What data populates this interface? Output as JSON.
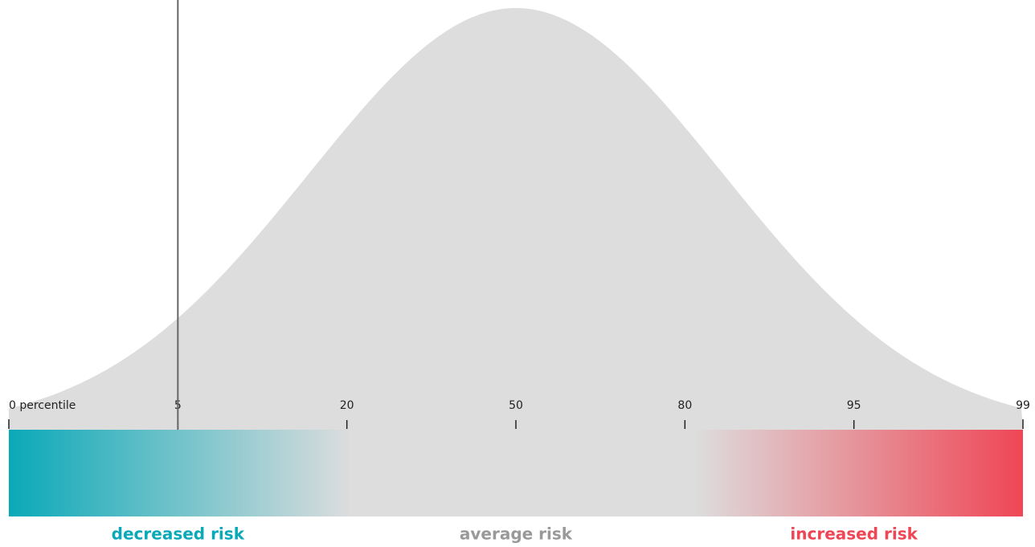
{
  "chart_data": {
    "type": "percentile",
    "ticks": [
      {
        "value": 0,
        "label": "0 percentile"
      },
      5,
      20,
      50,
      80,
      95,
      99
    ],
    "marker": 5,
    "curve_color": "#dddddd",
    "marker_color": "#666666",
    "regions": [
      {
        "name": "decreased risk",
        "color": "#0aa9b8"
      },
      {
        "name": "average risk",
        "color": "#999999"
      },
      {
        "name": "increased risk",
        "color": "#ef4655"
      }
    ]
  }
}
